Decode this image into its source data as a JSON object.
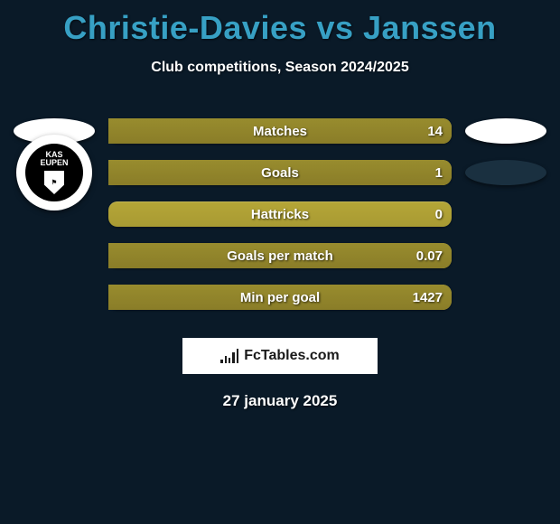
{
  "background_color": "#0a1a28",
  "title": {
    "text": "Christie-Davies vs Janssen",
    "color": "#37a0c4",
    "fontsize": 36,
    "fontweight": 800
  },
  "subtitle": {
    "text": "Club competitions, Season 2024/2025",
    "color": "#ffffff",
    "fontsize": 16
  },
  "bars": {
    "type": "comparison-bars",
    "bar_bg_color": "#a89a33",
    "bar_fill_color": "#8a7d28",
    "text_color": "#ffffff",
    "label_fontsize": 15,
    "rows": [
      {
        "label": "Matches",
        "left_val": "",
        "right_val": "14",
        "left_pct": 0,
        "right_pct": 100
      },
      {
        "label": "Goals",
        "left_val": "",
        "right_val": "1",
        "left_pct": 0,
        "right_pct": 100
      },
      {
        "label": "Hattricks",
        "left_val": "",
        "right_val": "0",
        "left_pct": 0,
        "right_pct": 0
      },
      {
        "label": "Goals per match",
        "left_val": "",
        "right_val": "0.07",
        "left_pct": 0,
        "right_pct": 100
      },
      {
        "label": "Min per goal",
        "left_val": "",
        "right_val": "1427",
        "left_pct": 0,
        "right_pct": 100
      }
    ]
  },
  "badges": {
    "left": [
      {
        "kind": "oval-white"
      },
      {
        "kind": "club",
        "top_text": "KAS",
        "bottom_text": "EUPEN"
      }
    ],
    "right": [
      {
        "kind": "oval-white"
      },
      {
        "kind": "oval-dark"
      }
    ]
  },
  "logo": {
    "text": "FcTables.com",
    "background": "#ffffff",
    "text_color": "#1a1a1a",
    "chart_icon_heights": [
      4,
      8,
      6,
      12,
      16
    ]
  },
  "date": {
    "text": "27 january 2025",
    "color": "#ffffff",
    "fontsize": 17
  }
}
